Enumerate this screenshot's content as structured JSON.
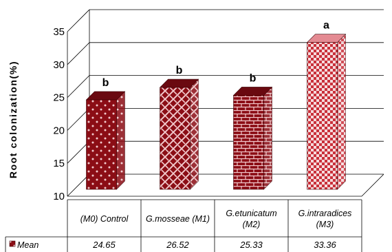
{
  "chart_data": {
    "type": "bar",
    "ylabel": "Root colonization(%)",
    "ylim": [
      10,
      35
    ],
    "yticks": [
      10,
      15,
      20,
      25,
      30,
      35
    ],
    "grid": true,
    "categories": [
      [
        "(M0)  Control"
      ],
      [
        "G.mosseae (M1)"
      ],
      [
        "G.etunicatum",
        "(M2)"
      ],
      [
        "G.intraradices",
        "(M3)"
      ]
    ],
    "series": [
      {
        "name": "Mean",
        "values": [
          24.65,
          26.52,
          25.33,
          33.36
        ],
        "value_labels": [
          "24.65",
          "26.52",
          "25.33",
          "33.36"
        ]
      }
    ],
    "significance_letters": [
      "b",
      "b",
      "b",
      "a"
    ],
    "data_table": true,
    "bar_style": "3d-patterned",
    "colors": {
      "bar": "#8b0d15",
      "bar_dark": "#5e070c",
      "pattern_light": "#f2c9cc",
      "grid": "#000000"
    }
  }
}
